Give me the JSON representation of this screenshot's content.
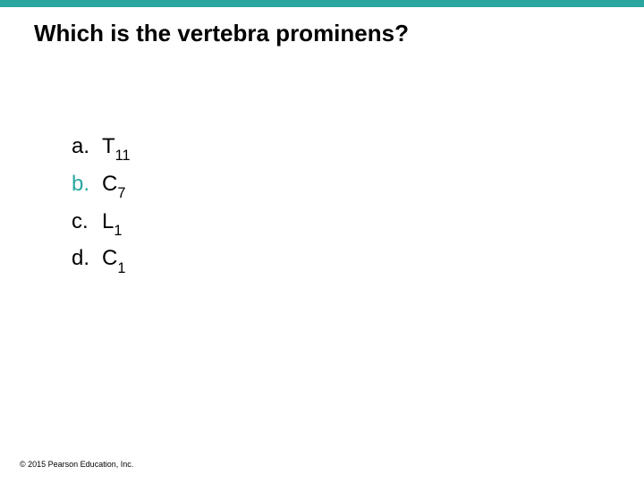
{
  "topBar": {
    "color": "#2aa8a0"
  },
  "question": {
    "text": "Which is the vertebra prominens?",
    "fontSize": 26,
    "color": "#000000"
  },
  "options": {
    "fontSize": 24,
    "correctColor": "#2aa8a0",
    "normalColor": "#000000",
    "items": [
      {
        "letter": "a.",
        "base": "T",
        "sub": "11",
        "correct": false
      },
      {
        "letter": "b.",
        "base": "C",
        "sub": "7",
        "correct": true
      },
      {
        "letter": "c.",
        "base": "L",
        "sub": "1",
        "correct": false
      },
      {
        "letter": "d.",
        "base": "C",
        "sub": "1",
        "correct": false
      }
    ]
  },
  "copyright": {
    "text": "© 2015 Pearson Education, Inc.",
    "fontSize": 9
  }
}
